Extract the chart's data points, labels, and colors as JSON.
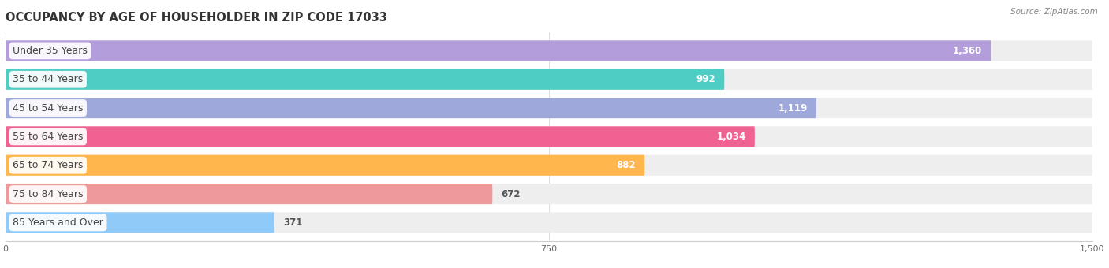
{
  "title": "OCCUPANCY BY AGE OF HOUSEHOLDER IN ZIP CODE 17033",
  "source": "Source: ZipAtlas.com",
  "categories": [
    "Under 35 Years",
    "35 to 44 Years",
    "45 to 54 Years",
    "55 to 64 Years",
    "65 to 74 Years",
    "75 to 84 Years",
    "85 Years and Over"
  ],
  "values": [
    1360,
    992,
    1119,
    1034,
    882,
    672,
    371
  ],
  "bar_colors": [
    "#b39ddb",
    "#4ecdc4",
    "#9fa8da",
    "#f06292",
    "#ffb74d",
    "#ef9a9a",
    "#90caf9"
  ],
  "xlim": [
    0,
    1500
  ],
  "xticks": [
    0,
    750,
    1500
  ],
  "background_color": "#ffffff",
  "bar_bg_color": "#eeeeee",
  "title_fontsize": 10.5,
  "label_fontsize": 9,
  "value_fontsize": 8.5
}
